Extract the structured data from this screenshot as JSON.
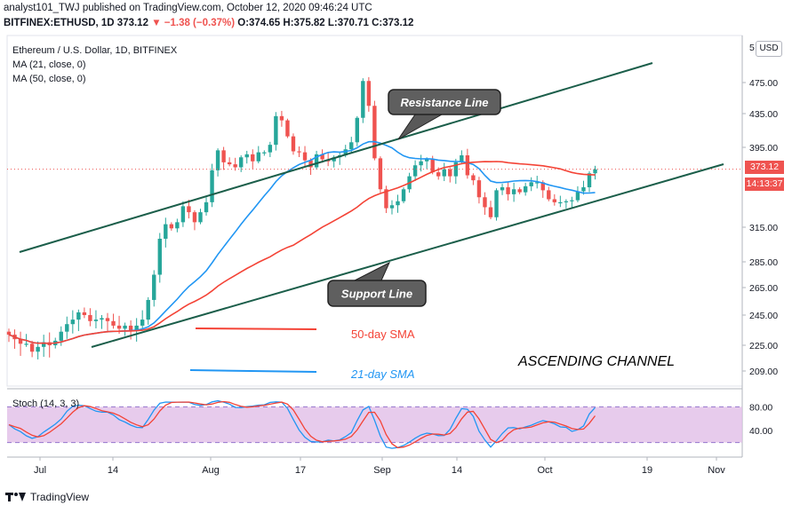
{
  "header": {
    "published": "analyst101_TWJ published on TradingView.com, October 12, 2020 09:46:24 UTC",
    "symbol": "BITFINEX:ETHUSD, 1D",
    "last": "373.12",
    "change": "▼ −1.38 (−0.37%)",
    "ohlc": "O:374.65 H:375.82 L:370.71 C:373.12"
  },
  "legend": {
    "title": "Ethereum / U.S. Dollar, 1D, BITFINEX",
    "ma21": "MA (21, close, 0)",
    "ma50": "MA (50, close, 0)"
  },
  "price_axis": {
    "currency": "USD",
    "last_price": "373.12",
    "countdown": "14:13:37"
  },
  "stoch": {
    "label": "Stoch (14, 3, 3)"
  },
  "annotations": {
    "resistance": "Resistance Line",
    "support": "Support Line",
    "sma50": "50-day SMA",
    "sma21": "21-day SMA",
    "channel": "ASCENDING CHANNEL"
  },
  "footer": {
    "brand": "TradingView"
  },
  "colors": {
    "up": "#26a69a",
    "down": "#ef5350",
    "ma21": "#2196f3",
    "ma50": "#f44336",
    "trendline": "#1b5e4a",
    "stoch_k": "#2196f3",
    "stoch_d": "#f44336",
    "stoch_band": "#e1bee7"
  },
  "chart_data": {
    "type": "candlestick",
    "y_ticks": [
      209,
      225,
      245,
      265,
      285,
      315,
      395,
      435,
      475
    ],
    "y_tick_labels": [
      "209.00",
      "225.00",
      "245.00",
      "265.00",
      "285.00",
      "315.00",
      "395.00",
      "435.00",
      "475.00"
    ],
    "y_top_label": "5",
    "x_ticks": [
      "Jul",
      "14",
      "Aug",
      "17",
      "Sep",
      "14",
      "Oct",
      "19",
      "Nov"
    ],
    "stoch_ticks": [
      80,
      40
    ],
    "stoch_tick_labels": [
      "80.00",
      "40.00"
    ],
    "closes": [
      232,
      229,
      226,
      226,
      221,
      224,
      227,
      225,
      228,
      234,
      239,
      242,
      247,
      245,
      241,
      242,
      243,
      241,
      238,
      236,
      238,
      235,
      238,
      242,
      256,
      275,
      305,
      318,
      314,
      320,
      336,
      330,
      320,
      330,
      340,
      372,
      392,
      380,
      378,
      375,
      385,
      388,
      381,
      390,
      390,
      398,
      432,
      427,
      408,
      391,
      390,
      382,
      375,
      388,
      383,
      381,
      385,
      387,
      393,
      401,
      430,
      477,
      445,
      384,
      353,
      334,
      337,
      341,
      353,
      366,
      377,
      381,
      383,
      370,
      366,
      373,
      366,
      380,
      387,
      367,
      362,
      345,
      335,
      325,
      352,
      355,
      348,
      353,
      350,
      356,
      360,
      360,
      352,
      343,
      340,
      340,
      341,
      342,
      351,
      355,
      369,
      373
    ]
  }
}
